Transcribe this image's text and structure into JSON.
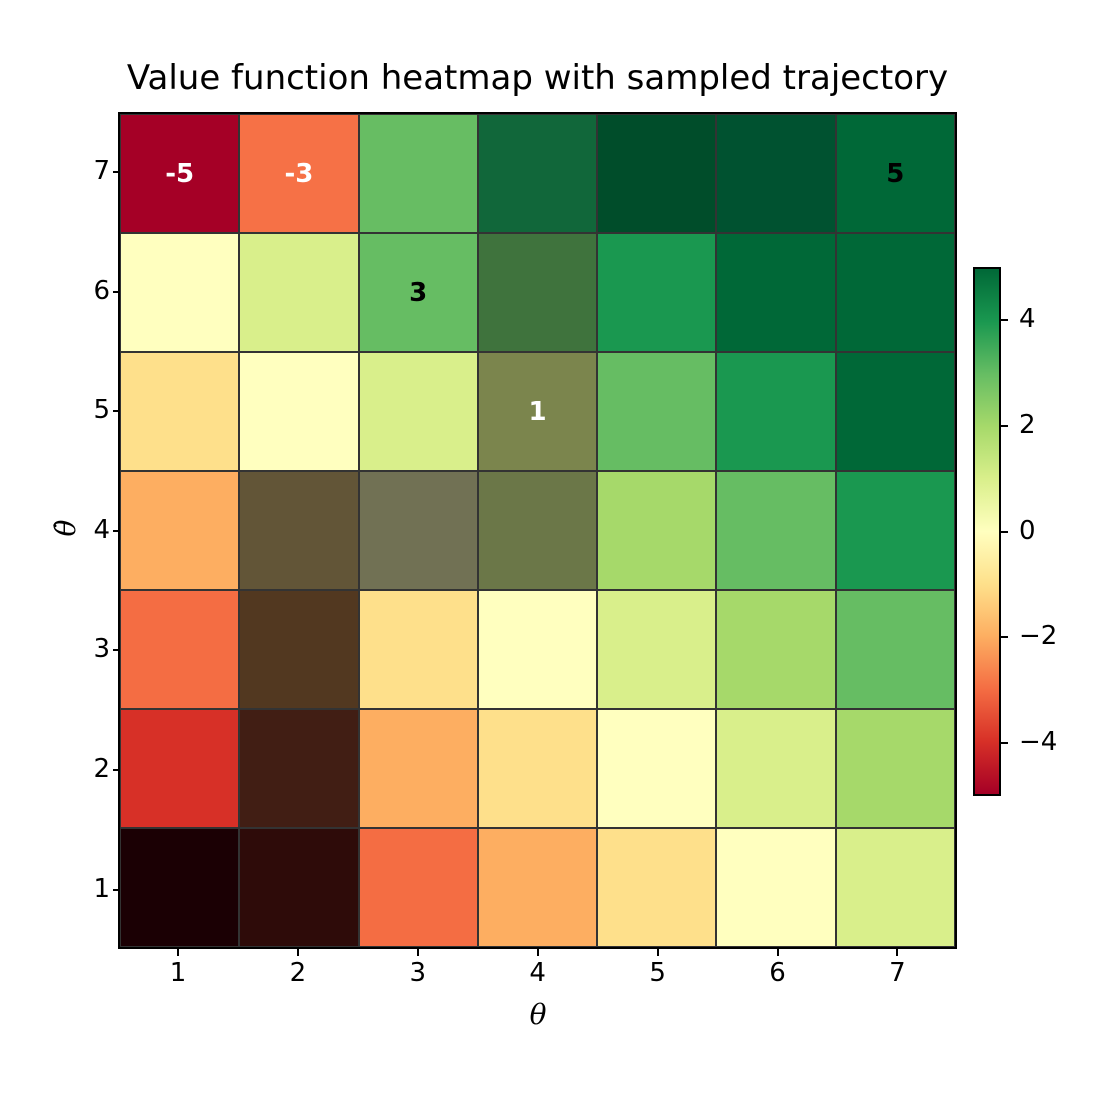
{
  "chart_data": {
    "type": "heatmap",
    "title": "Value function heatmap with sampled trajectory",
    "xlabel": "θ",
    "ylabel": "θ̇",
    "x": [
      1,
      2,
      3,
      4,
      5,
      6,
      7
    ],
    "y": [
      1,
      2,
      3,
      4,
      5,
      6,
      7
    ],
    "colormap": "RdYlGn",
    "colorbar": {
      "range": [
        -5,
        5
      ],
      "ticks": [
        "4",
        "2",
        "0",
        "−2",
        "−4"
      ]
    },
    "rows_top_to_bottom": [
      {
        "y": 7,
        "values": [
          -5,
          -3,
          3,
          4,
          5,
          5,
          5
        ],
        "colors": [
          "#a50026",
          "#f67146",
          "#67bd63",
          "#11673a",
          "#004d2a",
          "#005230",
          "#006837"
        ],
        "labels": [
          "-5",
          "-3",
          "",
          "",
          "",
          "",
          "5"
        ],
        "label_colors": [
          "#ffffff",
          "#ffffff",
          "",
          "",
          "",
          "",
          "#000000"
        ]
      },
      {
        "y": 6,
        "values": [
          0,
          1,
          3,
          4,
          4,
          5,
          5
        ],
        "colors": [
          "#ffffbf",
          "#d9ef8b",
          "#66bd63",
          "#3f733d",
          "#1a9850",
          "#006837",
          "#006837"
        ],
        "labels": [
          "",
          "",
          "3",
          "",
          "",
          "",
          ""
        ],
        "label_colors": [
          "",
          "",
          "#000000",
          "",
          "",
          "",
          ""
        ]
      },
      {
        "y": 5,
        "values": [
          -1,
          0,
          1,
          1,
          3,
          4,
          5
        ],
        "colors": [
          "#fee08b",
          "#ffffbf",
          "#d9ef8b",
          "#7b854d",
          "#66bd63",
          "#1a9850",
          "#006837"
        ],
        "labels": [
          "",
          "",
          "",
          "1",
          "",
          "",
          ""
        ],
        "label_colors": [
          "",
          "",
          "",
          "#ffffff",
          "",
          "",
          ""
        ]
      },
      {
        "y": 4,
        "values": [
          -2,
          -2,
          0,
          1,
          2,
          3,
          4
        ],
        "colors": [
          "#fdae61",
          "#625537",
          "#717154",
          "#6b7748",
          "#a6d96a",
          "#66bd63",
          "#1a9850"
        ],
        "labels": [
          "",
          "",
          "",
          "",
          "",
          "",
          ""
        ],
        "label_colors": [
          "",
          "",
          "",
          "",
          "",
          "",
          ""
        ]
      },
      {
        "y": 3,
        "values": [
          -3,
          -3,
          -1,
          0,
          1,
          2,
          3
        ],
        "colors": [
          "#f46d43",
          "#523820",
          "#fee08b",
          "#ffffbf",
          "#d9ef8b",
          "#a6d96a",
          "#66bd63"
        ],
        "labels": [
          "",
          "",
          "",
          "",
          "",
          "",
          ""
        ],
        "label_colors": [
          "",
          "",
          "",
          "",
          "",
          "",
          ""
        ]
      },
      {
        "y": 2,
        "values": [
          -4,
          -4,
          -2,
          -1,
          0,
          1,
          2
        ],
        "colors": [
          "#d73027",
          "#411e14",
          "#fdae61",
          "#fee08b",
          "#ffffbf",
          "#d9ef8b",
          "#a6d96a"
        ],
        "labels": [
          "",
          "",
          "",
          "",
          "",
          "",
          ""
        ],
        "label_colors": [
          "",
          "",
          "",
          "",
          "",
          "",
          ""
        ]
      },
      {
        "y": 1,
        "values": [
          -5,
          -5,
          -3,
          -2,
          -1,
          0,
          1
        ],
        "colors": [
          "#1b0004",
          "#2e0b09",
          "#f46d43",
          "#fdae61",
          "#fee08b",
          "#ffffbf",
          "#d9ef8b"
        ],
        "labels": [
          "",
          "",
          "",
          "",
          "",
          "",
          ""
        ],
        "label_colors": [
          "",
          "",
          "",
          "",
          "",
          "",
          ""
        ]
      }
    ],
    "annotations": [
      "-5",
      "-3",
      "5",
      "3",
      "1"
    ],
    "notes": "Darkened cells along lower-left region appear to mark the sampled trajectory"
  },
  "xticks": [
    "1",
    "2",
    "3",
    "4",
    "5",
    "6",
    "7"
  ],
  "yticks_top_to_bottom": [
    "7",
    "6",
    "5",
    "4",
    "3",
    "2",
    "1"
  ],
  "cbar_ticks": [
    {
      "label": "4",
      "pos": 0.9
    },
    {
      "label": "2",
      "pos": 0.7
    },
    {
      "label": "0",
      "pos": 0.5
    },
    {
      "label": "−2",
      "pos": 0.3
    },
    {
      "label": "−4",
      "pos": 0.1
    }
  ]
}
